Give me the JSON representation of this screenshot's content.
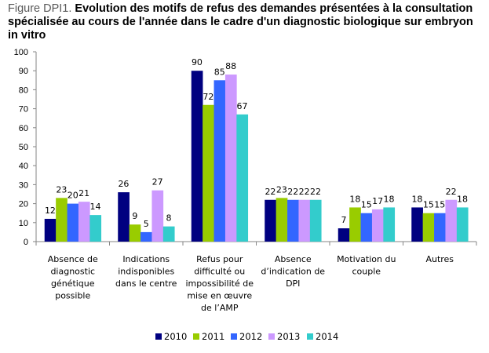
{
  "title": {
    "prefix": "Figure DPI1.",
    "text": " Evolution des motifs de refus des demandes présentées à la consultation spécialisée au cours de l'année dans le cadre d'un diagnostic biologique sur embryon in vitro"
  },
  "chart_data": {
    "type": "bar",
    "title": "Figure DPI1. Evolution des motifs de refus des demandes présentées à la consultation spécialisée au cours de l'année dans le cadre d'un diagnostic biologique sur embryon in vitro",
    "xlabel": "",
    "ylabel": "",
    "ylim": [
      0,
      100
    ],
    "yticks": [
      0,
      10,
      20,
      30,
      40,
      50,
      60,
      70,
      80,
      90,
      100
    ],
    "grid": false,
    "legend_position": "bottom",
    "categories": [
      [
        "Absence de",
        "diagnostic",
        "génétique",
        "possible"
      ],
      [
        "Indications",
        "indisponibles",
        "dans le centre"
      ],
      [
        "Refus pour",
        "difficulté ou",
        "impossibilité de",
        "mise en œuvre",
        "de l’AMP"
      ],
      [
        "Absence",
        "d’indication de",
        "DPI"
      ],
      [
        "Motivation du",
        "couple"
      ],
      [
        "Autres"
      ]
    ],
    "series": [
      {
        "name": "2010",
        "color": "#000080",
        "values": [
          12,
          26,
          90,
          22,
          7,
          18
        ]
      },
      {
        "name": "2011",
        "color": "#99CC00",
        "values": [
          23,
          9,
          72,
          23,
          18,
          15
        ]
      },
      {
        "name": "2012",
        "color": "#3366FF",
        "values": [
          20,
          5,
          85,
          22,
          15,
          15
        ]
      },
      {
        "name": "2013",
        "color": "#CC99FF",
        "values": [
          21,
          27,
          88,
          22,
          17,
          22
        ]
      },
      {
        "name": "2014",
        "color": "#33CCCC",
        "values": [
          14,
          8,
          67,
          22,
          18,
          18
        ]
      }
    ]
  }
}
